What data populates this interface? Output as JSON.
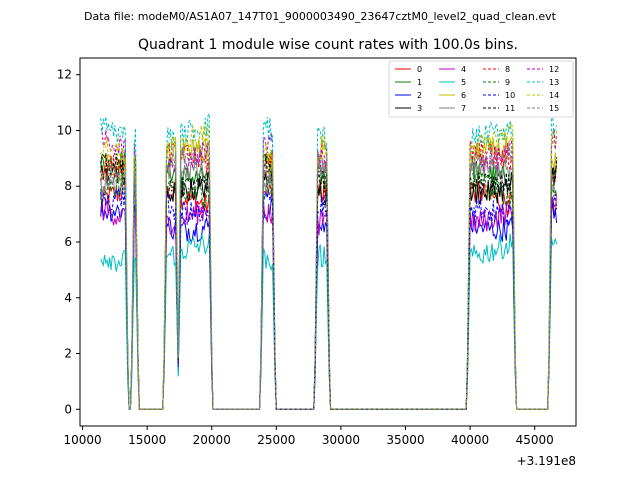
{
  "figure": {
    "suptitle": "Data file: modeM0/AS1A07_147T01_9000003490_23647cztM0_level2_quad_clean.evt"
  },
  "chart_data": {
    "type": "line",
    "title": "Quadrant 1 module wise count rates with 100.0s bins.",
    "xlabel": "",
    "ylabel": "",
    "x_offset_label": "+3.191e8",
    "xlim": [
      9800,
      48200
    ],
    "ylim": [
      -0.6,
      12.6
    ],
    "xticks": [
      10000,
      15000,
      20000,
      25000,
      30000,
      35000,
      40000,
      45000
    ],
    "xtick_labels": [
      "10000",
      "15000",
      "20000",
      "25000",
      "30000",
      "35000",
      "40000",
      "45000"
    ],
    "yticks": [
      0,
      2,
      4,
      6,
      8,
      10,
      12
    ],
    "ytick_labels": [
      "0",
      "2",
      "4",
      "6",
      "8",
      "10",
      "12"
    ],
    "grid": false,
    "legend_position": "top-right",
    "legend_columns": 4,
    "time_windows": [
      {
        "start": 11400,
        "end": 13300
      },
      {
        "start": 14000,
        "end": 14100
      },
      {
        "start": 16500,
        "end": 17200
      },
      {
        "start": 17600,
        "end": 19800
      },
      {
        "start": 24000,
        "end": 24700
      },
      {
        "start": 28200,
        "end": 28900
      },
      {
        "start": 40000,
        "end": 43300
      },
      {
        "start": 46300,
        "end": 46700
      }
    ],
    "series": [
      {
        "name": "0",
        "color": "#ff0000",
        "dash": "solid",
        "level": 7.6
      },
      {
        "name": "1",
        "color": "#008000",
        "dash": "solid",
        "level": 8.6
      },
      {
        "name": "2",
        "color": "#0000ff",
        "dash": "solid",
        "level": 6.8
      },
      {
        "name": "3",
        "color": "#000000",
        "dash": "solid",
        "level": 8.1
      },
      {
        "name": "4",
        "color": "#bf00bf",
        "dash": "solid",
        "level": 7.0
      },
      {
        "name": "5",
        "color": "#00bfbf",
        "dash": "solid",
        "level": 5.6
      },
      {
        "name": "6",
        "color": "#bfbf00",
        "dash": "solid",
        "level": 9.0
      },
      {
        "name": "7",
        "color": "#808080",
        "dash": "solid",
        "level": 8.3
      },
      {
        "name": "8",
        "color": "#ff0000",
        "dash": "dashed",
        "level": 8.9
      },
      {
        "name": "9",
        "color": "#008000",
        "dash": "dashed",
        "level": 7.9
      },
      {
        "name": "10",
        "color": "#0000ff",
        "dash": "dashed",
        "level": 7.3
      },
      {
        "name": "11",
        "color": "#000000",
        "dash": "dashed",
        "level": 8.4
      },
      {
        "name": "12",
        "color": "#bf00bf",
        "dash": "dashed",
        "level": 9.3
      },
      {
        "name": "13",
        "color": "#00bfbf",
        "dash": "dashed",
        "level": 10.0
      },
      {
        "name": "14",
        "color": "#bfbf00",
        "dash": "dashed",
        "level": 9.5
      },
      {
        "name": "15",
        "color": "#808080",
        "dash": "dashed",
        "level": 8.7
      }
    ]
  }
}
